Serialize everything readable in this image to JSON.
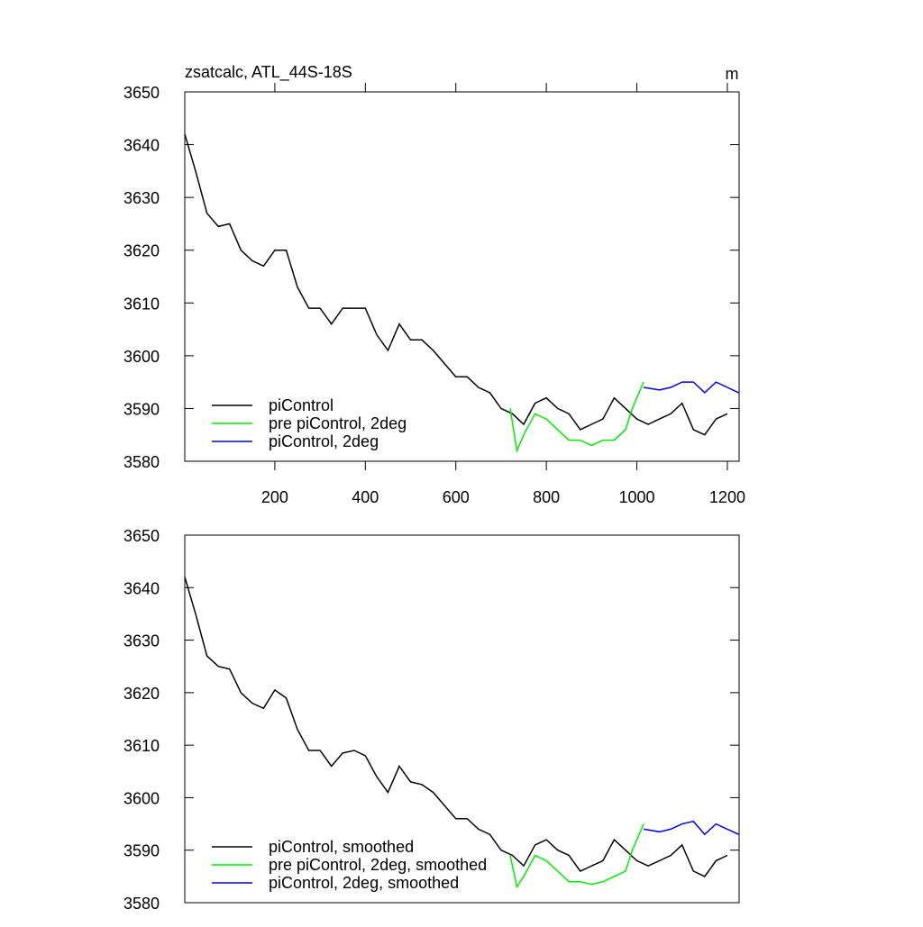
{
  "chart_data": [
    {
      "type": "line",
      "title": "zsatcalc, ATL_44S-18S",
      "y_units": "m",
      "xlim": [
        1,
        1226
      ],
      "xticks": [
        200,
        400,
        600,
        800,
        1000,
        1200
      ],
      "ylim": [
        3580,
        3650
      ],
      "yticks": [
        3580,
        3590,
        3600,
        3610,
        3620,
        3630,
        3640,
        3650
      ],
      "legend": "lower left",
      "series": [
        {
          "name": "piControl",
          "color": "#000000",
          "x": [
            1,
            25,
            50,
            75,
            100,
            125,
            150,
            175,
            200,
            225,
            250,
            275,
            300,
            325,
            350,
            375,
            400,
            425,
            450,
            475,
            500,
            525,
            550,
            600,
            625,
            650,
            675,
            700,
            725,
            750,
            775,
            800,
            825,
            850,
            875,
            900,
            925,
            950,
            975,
            1000,
            1025,
            1050,
            1075,
            1100,
            1125,
            1150,
            1175,
            1200
          ],
          "values": [
            3642,
            3635,
            3627,
            3624.5,
            3625,
            3620,
            3618,
            3617,
            3620,
            3620,
            3613,
            3609,
            3609,
            3606,
            3609,
            3609,
            3609,
            3604,
            3601,
            3606,
            3603,
            3603,
            3601,
            3596,
            3596,
            3594,
            3593,
            3590,
            3589,
            3587,
            3591,
            3592,
            3590,
            3589,
            3586,
            3587,
            3588,
            3592,
            3590,
            3588,
            3587,
            3588,
            3589,
            3591,
            3586,
            3585,
            3588,
            3589
          ]
        },
        {
          "name": "pre piControl, 2deg",
          "color": "#00ee00",
          "x": [
            720,
            735,
            750,
            775,
            800,
            825,
            850,
            875,
            900,
            925,
            950,
            975,
            990,
            1000,
            1015
          ],
          "values": [
            3590,
            3582,
            3585,
            3589,
            3588,
            3586,
            3584,
            3584,
            3583,
            3584,
            3584,
            3586,
            3590,
            3592,
            3595
          ]
        },
        {
          "name": "piControl, 2deg",
          "color": "#0000ee",
          "x": [
            1015,
            1050,
            1075,
            1100,
            1125,
            1150,
            1175,
            1200,
            1225
          ],
          "values": [
            3594,
            3593.5,
            3594,
            3595,
            3595,
            3593,
            3595,
            3594,
            3593
          ]
        }
      ]
    },
    {
      "type": "line",
      "xlim": [
        1,
        1226
      ],
      "ylim": [
        3580,
        3650
      ],
      "yticks": [
        3580,
        3590,
        3600,
        3610,
        3620,
        3630,
        3640,
        3650
      ],
      "legend": "lower left",
      "series": [
        {
          "name": "piControl, smoothed",
          "color": "#000000",
          "x": [
            1,
            25,
            50,
            75,
            100,
            125,
            150,
            175,
            200,
            225,
            250,
            275,
            300,
            325,
            350,
            375,
            400,
            425,
            450,
            475,
            500,
            525,
            550,
            600,
            625,
            650,
            675,
            700,
            725,
            750,
            775,
            800,
            825,
            850,
            875,
            900,
            925,
            950,
            975,
            1000,
            1025,
            1050,
            1075,
            1100,
            1125,
            1150,
            1175,
            1200
          ],
          "values": [
            3642,
            3635,
            3627,
            3625,
            3624.5,
            3620,
            3618,
            3617,
            3620.5,
            3619,
            3613,
            3609,
            3609,
            3606,
            3608.5,
            3609,
            3608,
            3604,
            3601,
            3606,
            3603,
            3602.5,
            3601,
            3596,
            3596,
            3594,
            3593,
            3590,
            3589,
            3587,
            3591,
            3592,
            3590,
            3589,
            3586,
            3587,
            3588,
            3592,
            3590,
            3588,
            3587,
            3588,
            3589,
            3591,
            3586,
            3585,
            3588,
            3589
          ]
        },
        {
          "name": "pre piControl, 2deg, smoothed",
          "color": "#00ee00",
          "x": [
            720,
            735,
            750,
            775,
            800,
            825,
            850,
            875,
            900,
            925,
            950,
            975,
            990,
            1000,
            1015
          ],
          "values": [
            3589,
            3583,
            3585,
            3589,
            3588,
            3586,
            3584,
            3584,
            3583.5,
            3584,
            3585,
            3586,
            3590,
            3592,
            3595
          ]
        },
        {
          "name": "piControl, 2deg, smoothed",
          "color": "#0000ee",
          "x": [
            1015,
            1050,
            1075,
            1100,
            1125,
            1150,
            1175,
            1200,
            1225
          ],
          "values": [
            3594,
            3593.5,
            3594,
            3595,
            3595.5,
            3593,
            3595,
            3594,
            3593
          ]
        }
      ]
    }
  ]
}
